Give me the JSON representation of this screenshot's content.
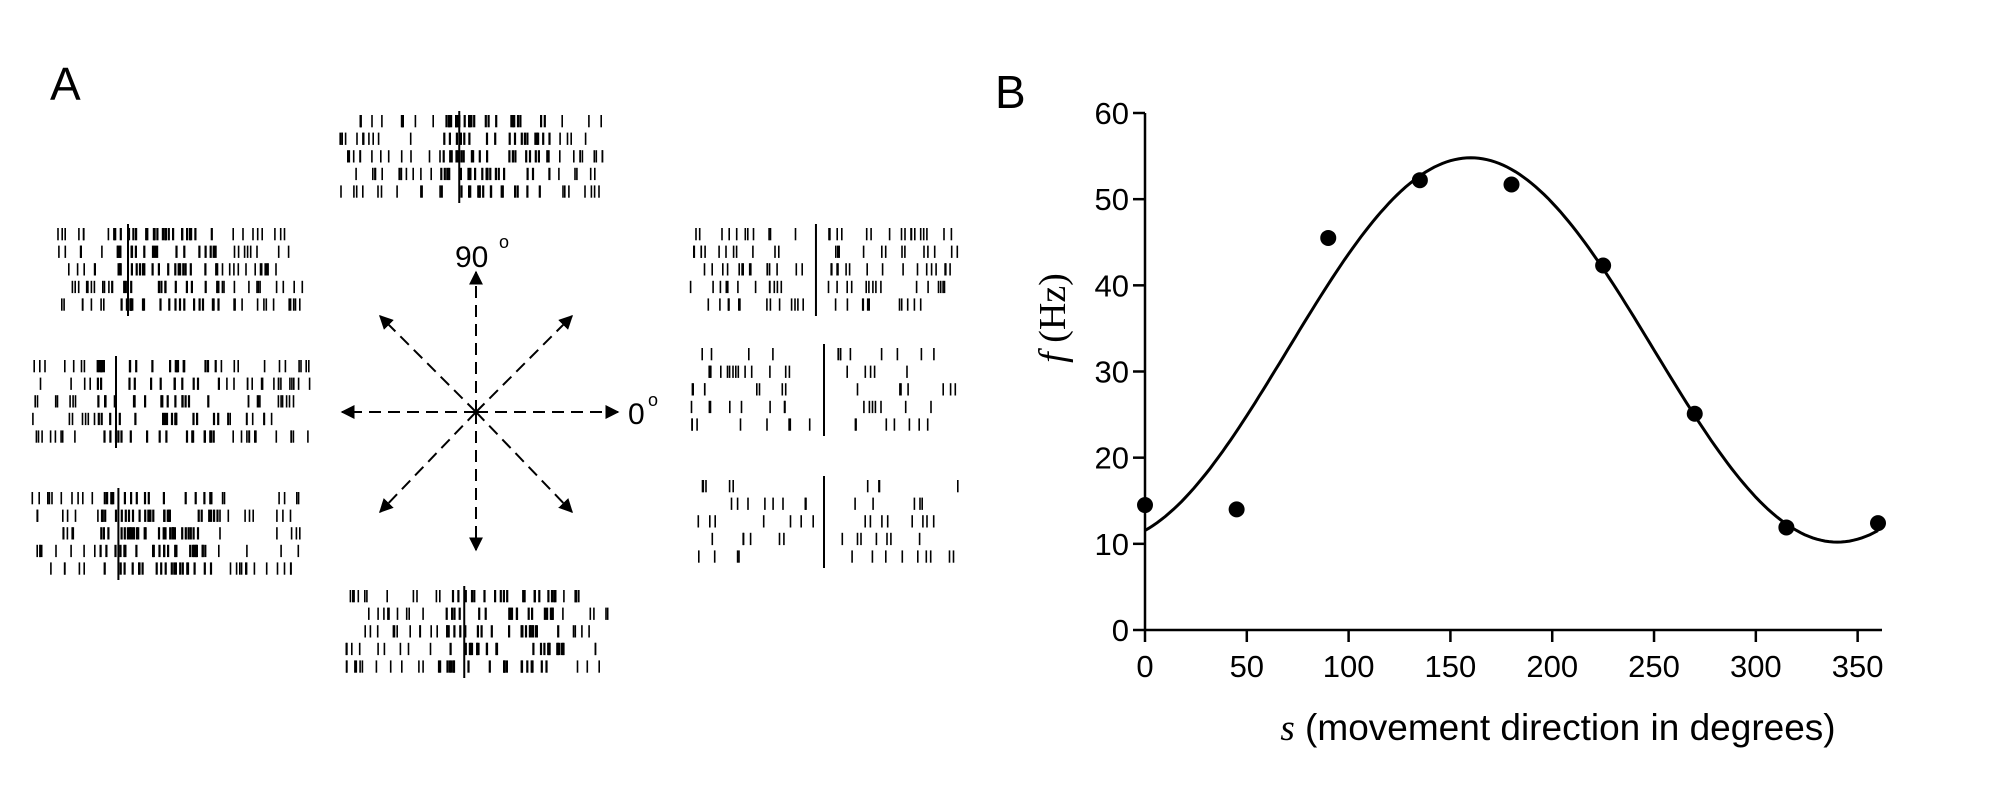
{
  "panels": {
    "a_label": "A",
    "b_label": "B"
  },
  "raster_panel": {
    "direction_labels": {
      "zero": "0",
      "ninety": "90",
      "degree_mark": "o"
    }
  },
  "chart_data": {
    "type": "scatter",
    "title": "",
    "xlabel_var": "s",
    "xlabel_rest": " (movement direction in degrees)",
    "ylabel_var": "f",
    "ylabel_rest": " (Hz)",
    "xlim": [
      0,
      360
    ],
    "ylim": [
      0,
      60
    ],
    "xticks": [
      0,
      50,
      100,
      150,
      200,
      250,
      300,
      350
    ],
    "yticks": [
      0,
      10,
      20,
      30,
      40,
      50,
      60
    ],
    "grid": false,
    "series": [
      {
        "type": "scatter",
        "x": [
          0,
          45,
          90,
          135,
          180,
          225,
          270,
          315,
          360
        ],
        "y": [
          14.5,
          14,
          45.5,
          52.2,
          51.7,
          42.3,
          25.1,
          11.9,
          12.4
        ]
      },
      {
        "type": "line",
        "model": "cosine fit",
        "baseline": 32.5,
        "amplitude": 22.3,
        "preferred_direction": 160
      }
    ]
  }
}
